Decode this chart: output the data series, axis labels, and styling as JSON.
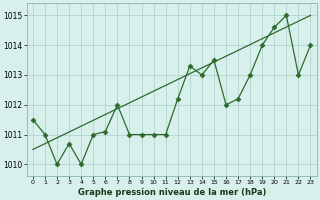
{
  "x": [
    0,
    1,
    2,
    3,
    4,
    5,
    6,
    7,
    8,
    9,
    10,
    11,
    12,
    13,
    14,
    15,
    16,
    17,
    18,
    19,
    20,
    21,
    22,
    23
  ],
  "y": [
    1011.5,
    1011.0,
    1010.0,
    1010.7,
    1010.0,
    1011.0,
    1011.1,
    1012.0,
    1011.0,
    1011.0,
    1011.0,
    1011.0,
    1012.2,
    1013.3,
    1013.0,
    1013.5,
    1012.0,
    1012.2,
    1013.0,
    1014.0,
    1014.6,
    1015.0,
    1013.0,
    1014.0
  ],
  "line_color": "#2d6a2d",
  "marker": "D",
  "markersize": 2.5,
  "bg_color": "#d8f0ec",
  "grid_color": "#b8d8d4",
  "title": "Graphe pression niveau de la mer (hPa)",
  "ylabel_min": 1009.6,
  "ylabel_max": 1015.4,
  "yticks": [
    1010,
    1011,
    1012,
    1013,
    1014,
    1015
  ],
  "xticks": [
    0,
    1,
    2,
    3,
    4,
    5,
    6,
    7,
    8,
    9,
    10,
    11,
    12,
    13,
    14,
    15,
    16,
    17,
    18,
    19,
    20,
    21,
    22,
    23
  ],
  "trend_x": [
    0,
    23
  ],
  "trend_y": [
    1010.5,
    1015.0
  ]
}
